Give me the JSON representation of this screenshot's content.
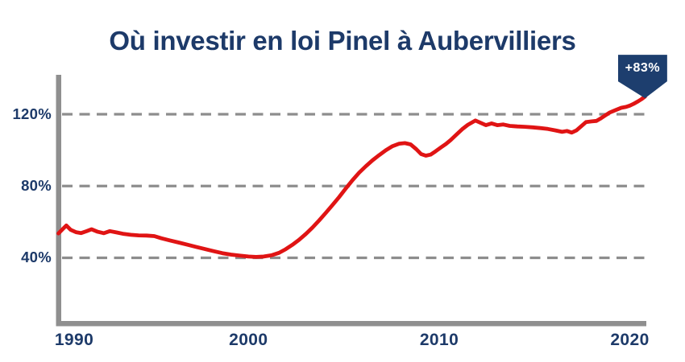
{
  "colors": {
    "navy": "#1d3a69",
    "red": "#e01414",
    "axis_gray": "#8f8f8f",
    "grid_gray": "#8d8d8d",
    "badge_bg": "#1d3e6e",
    "badge_text": "#ffffff"
  },
  "chart_data": {
    "type": "line",
    "title": "Où investir en loi Pinel à Aubervilliers",
    "xlabel": "",
    "ylabel": "",
    "xlim": [
      1989.1,
      2021.3
    ],
    "ylim": [
      0,
      142
    ],
    "grid": "horizontal-dashed",
    "legend": false,
    "xticks": [
      {
        "value": 1990,
        "label": "1990"
      },
      {
        "value": 2000,
        "label": "2000"
      },
      {
        "value": 2010,
        "label": "2010"
      },
      {
        "value": 2020,
        "label": "2020"
      }
    ],
    "yticks": [
      {
        "value": 40,
        "label": "40%"
      },
      {
        "value": 80,
        "label": "80%"
      },
      {
        "value": 120,
        "label": "120%"
      }
    ],
    "annotations": [
      {
        "text": "+83%",
        "position": "line-end"
      }
    ],
    "series": [
      {
        "points": [
          [
            1989.1,
            53.6
          ],
          [
            1989.3,
            55.6
          ],
          [
            1989.55,
            58.0
          ],
          [
            1989.8,
            55.6
          ],
          [
            1990.1,
            54.3
          ],
          [
            1990.4,
            53.8
          ],
          [
            1990.7,
            54.8
          ],
          [
            1991.0,
            55.9
          ],
          [
            1991.35,
            54.5
          ],
          [
            1991.7,
            53.7
          ],
          [
            1992.05,
            54.9
          ],
          [
            1992.45,
            54.1
          ],
          [
            1992.85,
            53.3
          ],
          [
            1993.25,
            52.8
          ],
          [
            1993.7,
            52.5
          ],
          [
            1994.15,
            52.4
          ],
          [
            1994.6,
            52.1
          ],
          [
            1995.0,
            50.9
          ],
          [
            1995.5,
            49.7
          ],
          [
            1996.0,
            48.5
          ],
          [
            1996.5,
            47.3
          ],
          [
            1997.0,
            46.1
          ],
          [
            1997.5,
            44.9
          ],
          [
            1998.0,
            43.7
          ],
          [
            1998.5,
            42.6
          ],
          [
            1999.0,
            41.8
          ],
          [
            1999.5,
            41.2
          ],
          [
            2000.0,
            40.7
          ],
          [
            2000.4,
            40.5
          ],
          [
            2000.8,
            40.7
          ],
          [
            2001.2,
            41.4
          ],
          [
            2001.6,
            42.8
          ],
          [
            2001.95,
            44.8
          ],
          [
            2002.3,
            47.2
          ],
          [
            2002.65,
            50.0
          ],
          [
            2003.0,
            53.2
          ],
          [
            2003.35,
            56.8
          ],
          [
            2003.7,
            60.8
          ],
          [
            2004.05,
            65.0
          ],
          [
            2004.4,
            69.3
          ],
          [
            2004.75,
            73.8
          ],
          [
            2005.1,
            78.6
          ],
          [
            2005.45,
            83.2
          ],
          [
            2005.8,
            87.4
          ],
          [
            2006.15,
            91.0
          ],
          [
            2006.5,
            94.3
          ],
          [
            2006.85,
            97.2
          ],
          [
            2007.2,
            99.9
          ],
          [
            2007.55,
            102.2
          ],
          [
            2007.9,
            103.6
          ],
          [
            2008.2,
            103.9
          ],
          [
            2008.5,
            103.2
          ],
          [
            2008.8,
            100.5
          ],
          [
            2009.05,
            97.8
          ],
          [
            2009.3,
            96.9
          ],
          [
            2009.55,
            97.5
          ],
          [
            2009.8,
            99.3
          ],
          [
            2010.1,
            101.6
          ],
          [
            2010.35,
            103.4
          ],
          [
            2010.6,
            105.6
          ],
          [
            2010.9,
            108.6
          ],
          [
            2011.2,
            111.6
          ],
          [
            2011.5,
            114.1
          ],
          [
            2011.9,
            116.5
          ],
          [
            2012.2,
            115.1
          ],
          [
            2012.45,
            113.9
          ],
          [
            2012.75,
            114.9
          ],
          [
            2013.05,
            113.9
          ],
          [
            2013.35,
            114.3
          ],
          [
            2013.7,
            113.5
          ],
          [
            2014.1,
            113.2
          ],
          [
            2014.5,
            113.0
          ],
          [
            2014.9,
            112.7
          ],
          [
            2015.3,
            112.3
          ],
          [
            2015.7,
            111.8
          ],
          [
            2016.1,
            111.0
          ],
          [
            2016.45,
            110.2
          ],
          [
            2016.7,
            110.7
          ],
          [
            2016.95,
            109.8
          ],
          [
            2017.2,
            111.0
          ],
          [
            2017.45,
            113.3
          ],
          [
            2017.7,
            115.6
          ],
          [
            2018.0,
            116.0
          ],
          [
            2018.25,
            116.3
          ],
          [
            2018.45,
            117.5
          ],
          [
            2018.7,
            119.3
          ],
          [
            2018.95,
            121.0
          ],
          [
            2019.25,
            122.3
          ],
          [
            2019.55,
            123.6
          ],
          [
            2019.8,
            124.1
          ],
          [
            2020.0,
            124.8
          ],
          [
            2020.2,
            125.8
          ],
          [
            2020.4,
            127.0
          ],
          [
            2020.6,
            128.3
          ],
          [
            2020.8,
            129.8
          ]
        ]
      }
    ]
  }
}
